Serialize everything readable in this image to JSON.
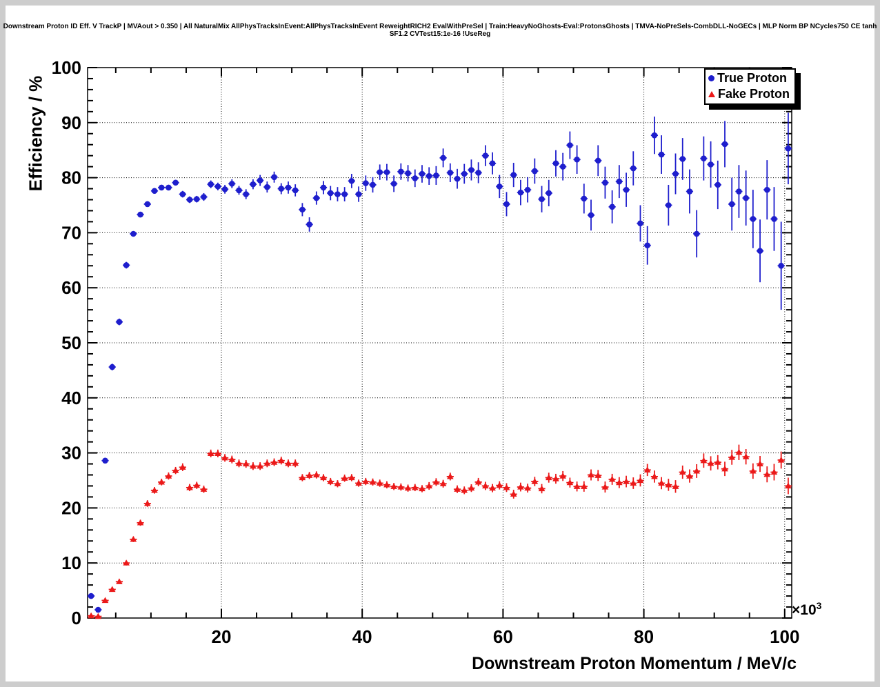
{
  "window": {
    "title": "Downstream Proton ID Eff. V TrackP | MVAout > 0.350 | All NaturalMix AllPhysTracksInEvent:AllPhysTracksInEvent ReweightRICH2 EvalWithPreSel | Train:HeavyNoGhosts-Eval:ProtonsGhosts | TMVA-NoPreSels-CombDLL-NoGECs | MLP Norm BP NCycles750 CE tanh SF1.2 CVTest15:1e-16 !UseReg"
  },
  "axes": {
    "y_title": "Efficiency / %",
    "x_title": "Downstream Proton Momentum / MeV/c",
    "x_power_base": "×10",
    "x_power_exp": "3"
  },
  "legend": {
    "items": [
      {
        "label": "True Proton",
        "marker": "circle",
        "color": "#1e1ecd"
      },
      {
        "label": "Fake Proton",
        "marker": "triangle",
        "color": "#eb1919"
      }
    ],
    "position": "top-right"
  },
  "chart_data": {
    "type": "scatter",
    "title": "Downstream Proton ID Eff. V TrackP | MVAout > 0.350 | All NaturalMix AllPhysTracksInEvent:AllPhysTracksInEvent ReweightRICH2 EvalWithPreSel | Train:HeavyNoGhosts-Eval:ProtonsGhosts | TMVA-NoPreSels-CombDLL-NoGECs | MLP Norm BP NCycles750 CE tanh SF1.2 CVTest15:1e-16 !UseReg",
    "xlabel": "Downstream Proton Momentum / MeV/c",
    "ylabel": "Efficiency / %",
    "x_unit": "10^3 MeV/c",
    "xlim": [
      1000,
      101000
    ],
    "xlim_units": [
      1,
      101
    ],
    "ylim": [
      0,
      100
    ],
    "x_ticks": [
      20,
      40,
      60,
      80,
      100
    ],
    "y_ticks": [
      0,
      10,
      20,
      30,
      40,
      50,
      60,
      70,
      80,
      90,
      100
    ],
    "x_minor_step": 5,
    "y_minor_step": 2,
    "grid": true,
    "legend_position": "top-right",
    "xerr_half_bin": 0.5,
    "series": [
      {
        "name": "True Proton",
        "marker": "circle",
        "color": "#1e1ecd",
        "x": [
          1.5,
          2.5,
          3.5,
          4.5,
          5.5,
          6.5,
          7.5,
          8.5,
          9.5,
          10.5,
          11.5,
          12.5,
          13.5,
          14.5,
          15.5,
          16.5,
          17.5,
          18.5,
          19.5,
          20.5,
          21.5,
          22.5,
          23.5,
          24.5,
          25.5,
          26.5,
          27.5,
          28.5,
          29.5,
          30.5,
          31.5,
          32.5,
          33.5,
          34.5,
          35.5,
          36.5,
          37.5,
          38.5,
          39.5,
          40.5,
          41.5,
          42.5,
          43.5,
          44.5,
          45.5,
          46.5,
          47.5,
          48.5,
          49.5,
          50.5,
          51.5,
          52.5,
          53.5,
          54.5,
          55.5,
          56.5,
          57.5,
          58.5,
          59.5,
          60.5,
          61.5,
          62.5,
          63.5,
          64.5,
          65.5,
          66.5,
          67.5,
          68.5,
          69.5,
          70.5,
          71.5,
          72.5,
          73.5,
          74.5,
          75.5,
          76.5,
          77.5,
          78.5,
          79.5,
          80.5,
          81.5,
          82.5,
          83.5,
          84.5,
          85.5,
          86.5,
          87.5,
          88.5,
          89.5,
          90.5,
          91.5,
          92.5,
          93.5,
          94.5,
          95.5,
          96.5,
          97.5,
          98.5,
          99.5,
          100.5
        ],
        "y": [
          4.0,
          1.5,
          28.6,
          45.6,
          53.8,
          64.1,
          69.8,
          73.3,
          75.2,
          77.6,
          78.2,
          78.2,
          79.1,
          77.0,
          76.0,
          76.1,
          76.5,
          78.8,
          78.4,
          77.9,
          78.9,
          77.7,
          77.0,
          78.8,
          79.5,
          78.3,
          80.1,
          78.0,
          78.2,
          77.7,
          74.2,
          71.5,
          76.3,
          78.2,
          77.2,
          77.0,
          77.0,
          79.4,
          77.0,
          79.0,
          78.7,
          81.0,
          81.0,
          78.9,
          81.1,
          80.8,
          79.9,
          80.7,
          80.3,
          80.4,
          83.6,
          80.9,
          79.8,
          80.7,
          81.4,
          80.9,
          84.0,
          82.6,
          78.4,
          75.2,
          80.5,
          77.3,
          77.8,
          81.2,
          76.1,
          77.2,
          82.6,
          82.0,
          85.9,
          83.3,
          76.2,
          73.2,
          83.1,
          79.1,
          74.7,
          79.3,
          77.8,
          81.7,
          71.7,
          67.7,
          87.7,
          84.2,
          75.0,
          80.7,
          83.4,
          77.5,
          69.8,
          83.5,
          82.4,
          78.7,
          86.1,
          75.2,
          77.5,
          76.3,
          72.5,
          66.7,
          77.8,
          72.5,
          64.0,
          85.3
        ],
        "yerr": [
          0.5,
          0.3,
          0.5,
          0.6,
          0.6,
          0.6,
          0.5,
          0.5,
          0.5,
          0.5,
          0.5,
          0.5,
          0.5,
          0.6,
          0.6,
          0.6,
          0.7,
          0.7,
          0.7,
          0.8,
          0.8,
          0.8,
          0.9,
          0.9,
          1.0,
          1.0,
          1.0,
          1.0,
          1.1,
          1.1,
          1.2,
          1.3,
          1.2,
          1.2,
          1.3,
          1.3,
          1.3,
          1.3,
          1.4,
          1.4,
          1.4,
          1.4,
          1.5,
          1.5,
          1.5,
          1.5,
          1.6,
          1.6,
          1.6,
          1.7,
          1.7,
          1.7,
          1.8,
          1.8,
          1.9,
          1.9,
          1.9,
          2.0,
          2.1,
          2.2,
          2.2,
          2.3,
          2.3,
          2.3,
          2.4,
          2.4,
          2.4,
          2.5,
          2.5,
          2.6,
          2.7,
          2.8,
          2.8,
          2.9,
          3.0,
          3.0,
          3.1,
          3.1,
          3.3,
          3.5,
          3.4,
          3.5,
          3.7,
          3.7,
          3.8,
          4.0,
          4.3,
          4.0,
          4.2,
          4.4,
          4.2,
          4.8,
          4.8,
          5.0,
          5.3,
          5.7,
          5.4,
          5.8,
          8.0,
          6.5
        ]
      },
      {
        "name": "Fake Proton",
        "marker": "triangle",
        "color": "#eb1919",
        "x": [
          1.5,
          2.5,
          3.5,
          4.5,
          5.5,
          6.5,
          7.5,
          8.5,
          9.5,
          10.5,
          11.5,
          12.5,
          13.5,
          14.5,
          15.5,
          16.5,
          17.5,
          18.5,
          19.5,
          20.5,
          21.5,
          22.5,
          23.5,
          24.5,
          25.5,
          26.5,
          27.5,
          28.5,
          29.5,
          30.5,
          31.5,
          32.5,
          33.5,
          34.5,
          35.5,
          36.5,
          37.5,
          38.5,
          39.5,
          40.5,
          41.5,
          42.5,
          43.5,
          44.5,
          45.5,
          46.5,
          47.5,
          48.5,
          49.5,
          50.5,
          51.5,
          52.5,
          53.5,
          54.5,
          55.5,
          56.5,
          57.5,
          58.5,
          59.5,
          60.5,
          61.5,
          62.5,
          63.5,
          64.5,
          65.5,
          66.5,
          67.5,
          68.5,
          69.5,
          70.5,
          71.5,
          72.5,
          73.5,
          74.5,
          75.5,
          76.5,
          77.5,
          78.5,
          79.5,
          80.5,
          81.5,
          82.5,
          83.5,
          84.5,
          85.5,
          86.5,
          87.5,
          88.5,
          89.5,
          90.5,
          91.5,
          92.5,
          93.5,
          94.5,
          95.5,
          96.5,
          97.5,
          98.5,
          99.5,
          100.5
        ],
        "y": [
          0.4,
          0.3,
          3.2,
          5.2,
          6.6,
          10.0,
          14.3,
          17.3,
          20.8,
          23.2,
          24.7,
          25.8,
          26.8,
          27.4,
          23.7,
          24.1,
          23.4,
          29.9,
          29.9,
          29.1,
          28.8,
          28.1,
          28.0,
          27.6,
          27.6,
          28.1,
          28.3,
          28.6,
          28.1,
          28.1,
          25.5,
          25.9,
          26.0,
          25.5,
          24.8,
          24.4,
          25.4,
          25.5,
          24.5,
          24.8,
          24.7,
          24.5,
          24.2,
          23.9,
          23.8,
          23.6,
          23.7,
          23.5,
          24.0,
          24.7,
          24.4,
          25.7,
          23.4,
          23.2,
          23.6,
          24.7,
          24.0,
          23.6,
          24.1,
          23.7,
          22.5,
          23.8,
          23.6,
          24.8,
          23.5,
          25.5,
          25.3,
          25.8,
          24.6,
          23.9,
          23.9,
          26.0,
          25.9,
          23.8,
          25.2,
          24.6,
          24.8,
          24.5,
          25.0,
          26.9,
          25.7,
          24.5,
          24.2,
          23.9,
          26.5,
          25.8,
          26.7,
          28.6,
          28.1,
          28.3,
          27.1,
          29.2,
          30.1,
          29.3,
          26.7,
          28.0,
          26.1,
          26.5,
          28.7,
          24.0
        ],
        "yerr": [
          0.2,
          0.15,
          0.3,
          0.35,
          0.4,
          0.45,
          0.5,
          0.55,
          0.6,
          0.6,
          0.6,
          0.65,
          0.65,
          0.7,
          0.65,
          0.65,
          0.65,
          0.7,
          0.7,
          0.7,
          0.7,
          0.7,
          0.7,
          0.7,
          0.7,
          0.7,
          0.7,
          0.7,
          0.7,
          0.7,
          0.65,
          0.65,
          0.65,
          0.65,
          0.65,
          0.65,
          0.65,
          0.65,
          0.65,
          0.65,
          0.65,
          0.65,
          0.65,
          0.65,
          0.65,
          0.65,
          0.65,
          0.65,
          0.7,
          0.7,
          0.7,
          0.7,
          0.7,
          0.7,
          0.7,
          0.75,
          0.75,
          0.75,
          0.75,
          0.8,
          0.8,
          0.8,
          0.8,
          0.85,
          0.85,
          0.9,
          0.9,
          0.9,
          0.9,
          0.9,
          0.95,
          1.0,
          1.0,
          1.0,
          1.0,
          1.0,
          1.05,
          1.05,
          1.1,
          1.1,
          1.1,
          1.1,
          1.1,
          1.15,
          1.2,
          1.2,
          1.25,
          1.3,
          1.3,
          1.3,
          1.3,
          1.35,
          1.4,
          1.4,
          1.4,
          1.45,
          1.45,
          1.5,
          1.55,
          1.5
        ]
      }
    ]
  }
}
